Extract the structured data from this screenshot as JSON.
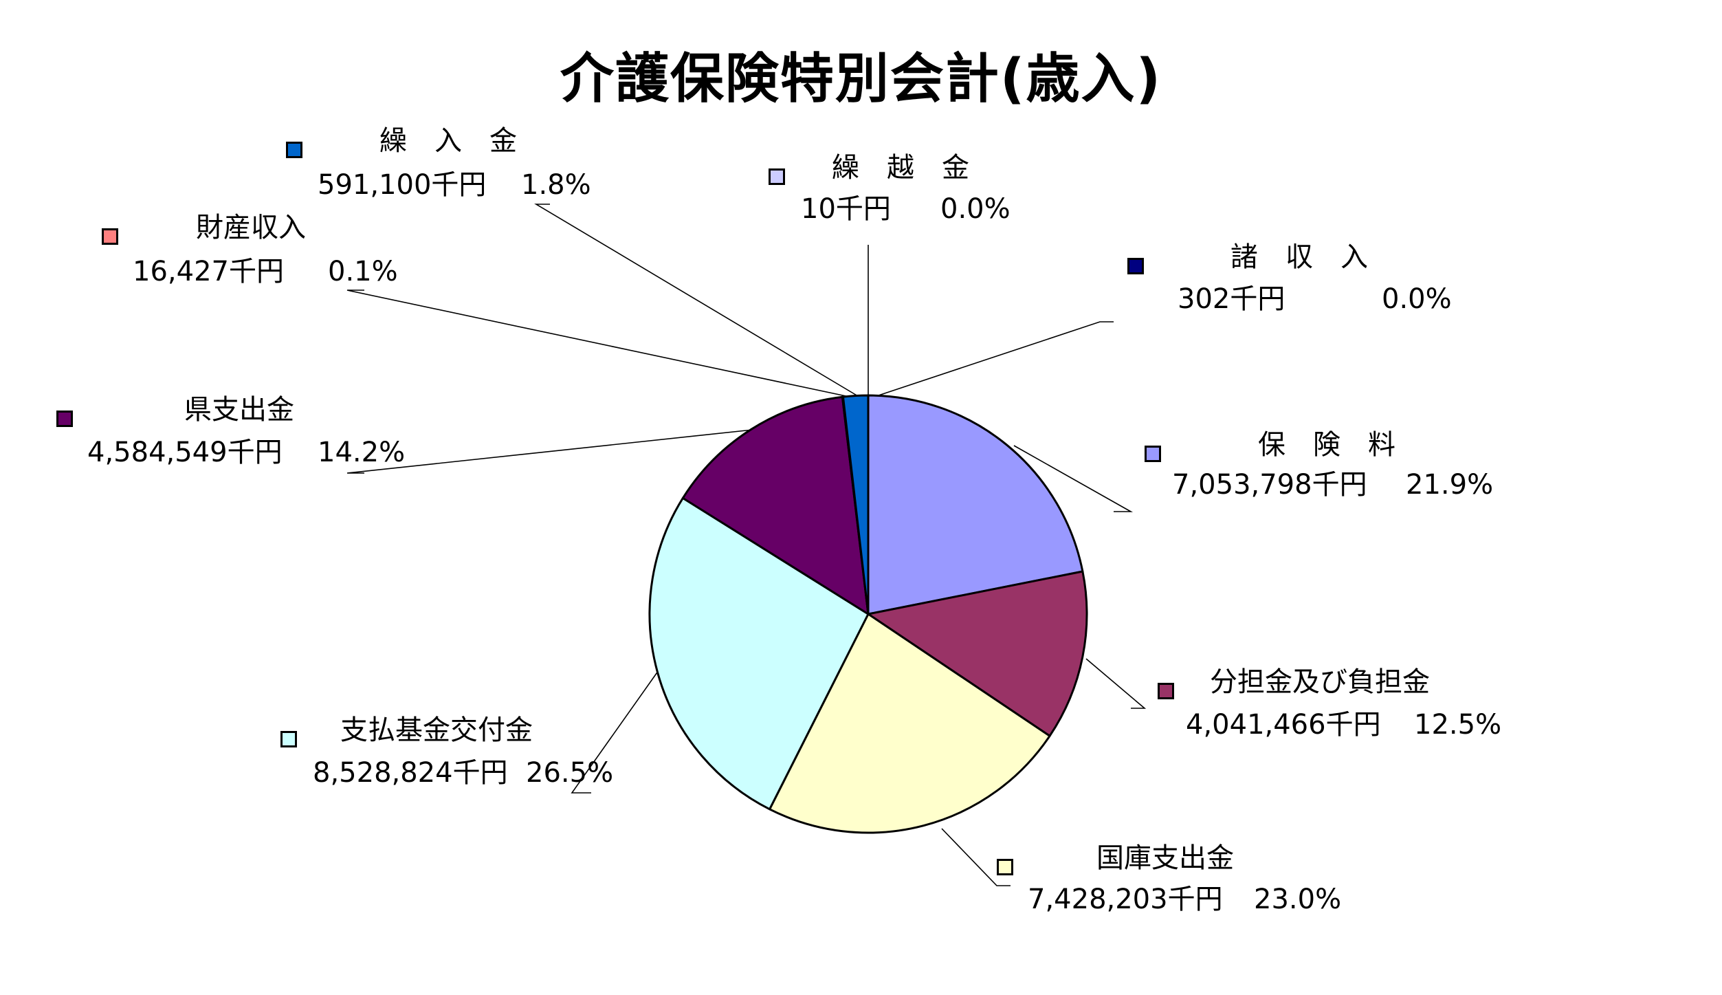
{
  "chart_data": {
    "type": "pie",
    "title": "介護保険特別会計(歳入)",
    "slices": [
      {
        "name": "保　険　料",
        "value_text": "7,053,798千円",
        "percent_text": "21.9%",
        "value": 7053798,
        "color": "#9999FF"
      },
      {
        "name": "分担金及び負担金",
        "value_text": "4,041,466千円",
        "percent_text": "12.5%",
        "value": 4041466,
        "color": "#993366"
      },
      {
        "name": "国庫支出金",
        "value_text": "7,428,203千円",
        "percent_text": "23.0%",
        "value": 7428203,
        "color": "#FFFFCC"
      },
      {
        "name": "支払基金交付金",
        "value_text": "8,528,824千円",
        "percent_text": "26.5%",
        "value": 8528824,
        "color": "#CCFFFF"
      },
      {
        "name": "県支出金",
        "value_text": "4,584,549千円",
        "percent_text": "14.2%",
        "value": 4584549,
        "color": "#660066"
      },
      {
        "name": "財産収入",
        "value_text": "16,427千円",
        "percent_text": "0.1%",
        "value": 16427,
        "color": "#FF8080"
      },
      {
        "name": "繰　入　金",
        "value_text": "591,100千円",
        "percent_text": "1.8%",
        "value": 591100,
        "color": "#0066CC"
      },
      {
        "name": "繰　越　金",
        "value_text": "10千円",
        "percent_text": "0.0%",
        "value": 10,
        "color": "#CCCCFF"
      },
      {
        "name": "諸　収　入",
        "value_text": "302千円",
        "percent_text": "0.0%",
        "value": 302,
        "color": "#000080"
      }
    ]
  }
}
